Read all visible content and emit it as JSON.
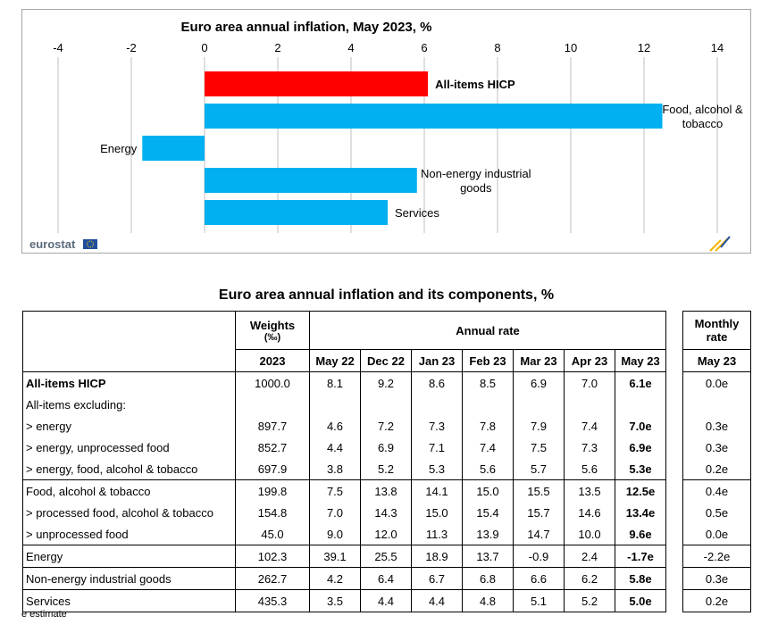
{
  "chart_data": {
    "type": "bar",
    "orientation": "horizontal",
    "title": "Euro area annual inflation, May 2023, %",
    "xlim": [
      -4,
      14
    ],
    "xticks": [
      -4,
      -2,
      0,
      2,
      4,
      6,
      8,
      10,
      12,
      14
    ],
    "grid": true,
    "categories": [
      "All-items HICP",
      "Food, alcohol & tobacco",
      "Energy",
      "Non-energy industrial goods",
      "Services"
    ],
    "category_label_lines": [
      [
        "All-items HICP"
      ],
      [
        "Food, alcohol &",
        "tobacco"
      ],
      [
        "Energy"
      ],
      [
        "Non-energy industrial",
        "goods"
      ],
      [
        "Services"
      ]
    ],
    "values": [
      6.1,
      12.5,
      -1.7,
      5.8,
      5.0
    ],
    "colors": [
      "#ff0000",
      "#00b0f0",
      "#00b0f0",
      "#00b0f0",
      "#00b0f0"
    ],
    "source_logo": "eurostat"
  },
  "table": {
    "title": "Euro area annual inflation and its components, %",
    "headers": {
      "weights": "Weights",
      "weights_unit": "(‰)",
      "annual_rate": "Annual rate",
      "monthly_rate": "Monthly rate",
      "weights_year": "2023",
      "periods": [
        "May 22",
        "Dec 22",
        "Jan 23",
        "Feb 23",
        "Mar 23",
        "Apr 23",
        "May 23"
      ],
      "monthly_period": "May 23"
    },
    "rows": [
      {
        "label": "All-items HICP",
        "weight": "1000.0",
        "rates": [
          "8.1",
          "9.2",
          "8.6",
          "8.5",
          "6.9",
          "7.0",
          "6.1e"
        ],
        "monthly": "0.0e"
      },
      {
        "label": "All-items excluding:",
        "weight": "",
        "rates": [
          "",
          "",
          "",
          "",
          "",
          "",
          ""
        ],
        "monthly": ""
      },
      {
        "label": "> energy",
        "weight": "897.7",
        "rates": [
          "4.6",
          "7.2",
          "7.3",
          "7.8",
          "7.9",
          "7.4",
          "7.0e"
        ],
        "monthly": "0.3e"
      },
      {
        "label": "> energy, unprocessed food",
        "weight": "852.7",
        "rates": [
          "4.4",
          "6.9",
          "7.1",
          "7.4",
          "7.5",
          "7.3",
          "6.9e"
        ],
        "monthly": "0.3e"
      },
      {
        "label": "> energy, food, alcohol & tobacco",
        "weight": "697.9",
        "rates": [
          "3.8",
          "5.2",
          "5.3",
          "5.6",
          "5.7",
          "5.6",
          "5.3e"
        ],
        "monthly": "0.2e"
      },
      {
        "label": "Food, alcohol & tobacco",
        "weight": "199.8",
        "rates": [
          "7.5",
          "13.8",
          "14.1",
          "15.0",
          "15.5",
          "13.5",
          "12.5e"
        ],
        "monthly": "0.4e"
      },
      {
        "label": "> processed food, alcohol & tobacco",
        "weight": "154.8",
        "rates": [
          "7.0",
          "14.3",
          "15.0",
          "15.4",
          "15.7",
          "14.6",
          "13.4e"
        ],
        "monthly": "0.5e"
      },
      {
        "label": "> unprocessed food",
        "weight": "45.0",
        "rates": [
          "9.0",
          "12.0",
          "11.3",
          "13.9",
          "14.7",
          "10.0",
          "9.6e"
        ],
        "monthly": "0.0e"
      },
      {
        "label": "Energy",
        "weight": "102.3",
        "rates": [
          "39.1",
          "25.5",
          "18.9",
          "13.7",
          "-0.9",
          "2.4",
          "-1.7e"
        ],
        "monthly": "-2.2e"
      },
      {
        "label": "Non-energy industrial goods",
        "weight": "262.7",
        "rates": [
          "4.2",
          "6.4",
          "6.7",
          "6.8",
          "6.6",
          "6.2",
          "5.8e"
        ],
        "monthly": "0.3e"
      },
      {
        "label": "Services",
        "weight": "435.3",
        "rates": [
          "3.5",
          "4.4",
          "4.4",
          "4.8",
          "5.1",
          "5.2",
          "5.0e"
        ],
        "monthly": "0.2e"
      }
    ],
    "footnote": "e estimate"
  }
}
